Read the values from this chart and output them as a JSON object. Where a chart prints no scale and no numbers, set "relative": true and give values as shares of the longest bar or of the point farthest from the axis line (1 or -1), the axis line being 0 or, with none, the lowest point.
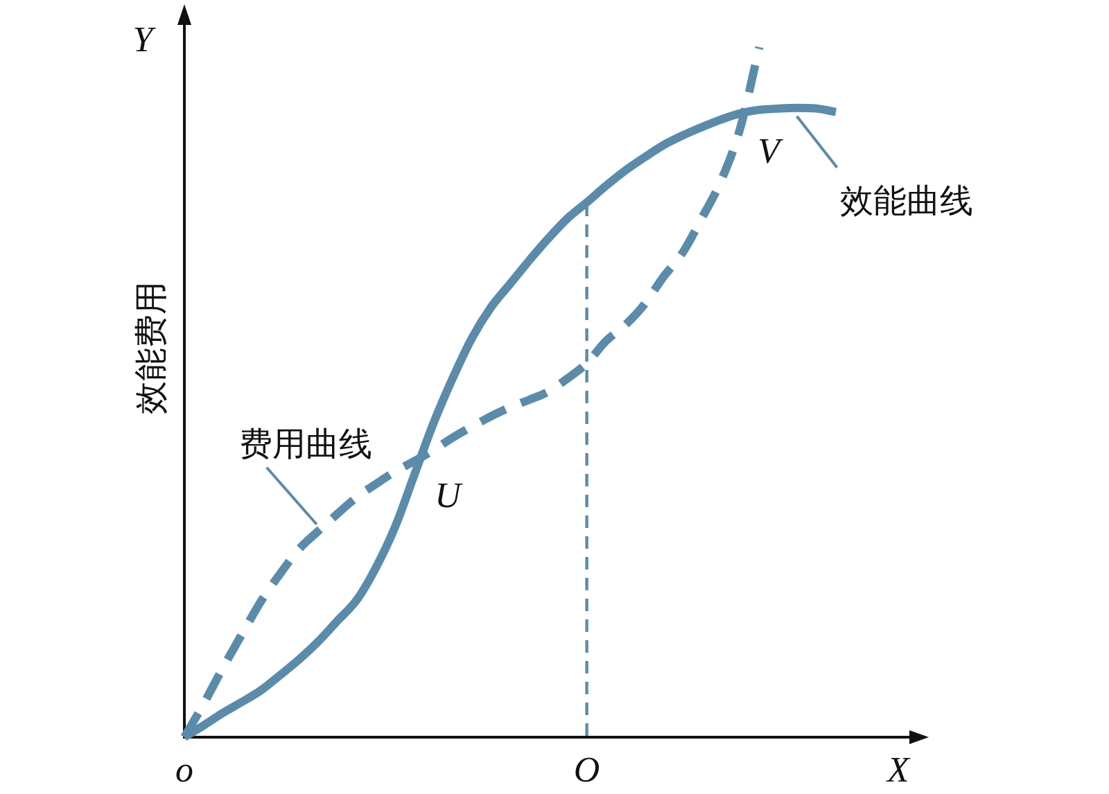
{
  "chart_data": {
    "type": "line",
    "relative": true,
    "xlabel": "X",
    "ylabel": "效能费用",
    "categories": [
      "o",
      null,
      null,
      null,
      null,
      null,
      null,
      null,
      null,
      null,
      null,
      null,
      null,
      null,
      null,
      null,
      null,
      null,
      null,
      null,
      null,
      "O",
      null,
      null,
      null,
      null,
      null,
      null,
      null,
      null,
      null,
      null,
      null,
      null,
      null
    ],
    "series": [
      {
        "name": "效能曲线",
        "color": "#5a8bab",
        "line_style": "solid",
        "values": [
          0,
          0.017,
          0.035,
          0.051,
          0.068,
          0.09,
          0.113,
          0.139,
          0.169,
          0.199,
          0.246,
          0.305,
          0.38,
          0.455,
          0.52,
          0.578,
          0.623,
          0.657,
          0.691,
          0.723,
          0.752,
          0.775,
          0.799,
          0.821,
          0.84,
          0.858,
          0.872,
          0.884,
          0.895,
          0.904,
          0.909,
          0.911,
          0.912,
          0.911,
          0.906
        ]
      },
      {
        "name": "费用曲线",
        "color": "#5a8bab",
        "line_style": "dashed",
        "values": [
          0,
          0.048,
          0.1,
          0.149,
          0.197,
          0.237,
          0.273,
          0.299,
          0.324,
          0.348,
          0.367,
          0.385,
          0.4,
          0.416,
          0.434,
          0.45,
          0.465,
          0.478,
          0.489,
          0.501,
          0.52,
          0.542,
          0.574,
          0.597,
          0.627,
          0.667,
          0.702,
          0.752,
          0.806,
          0.882,
          1,
          null,
          null,
          null,
          null
        ]
      }
    ],
    "ref_lines": [
      {
        "axis": "x",
        "value": "O",
        "color": "#5a8bab",
        "line_style": "dashed"
      }
    ],
    "annotations": [
      "U",
      "V",
      "Y"
    ]
  }
}
